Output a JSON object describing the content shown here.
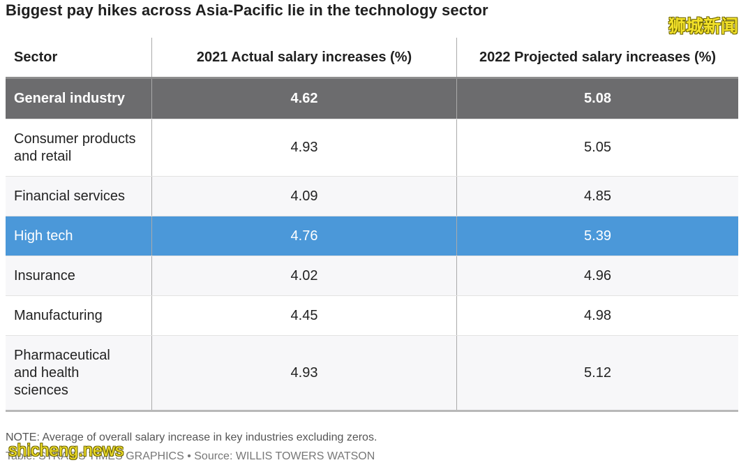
{
  "title": "Biggest pay hikes across Asia-Pacific lie in the technology sector",
  "watermark_top": "狮城新闻",
  "watermark_bottom": "shicheng.news",
  "colors": {
    "general_row_bg": "#6c6c6e",
    "highlight_row_bg": "#4b98d9",
    "watermark": "#f2e12a"
  },
  "chart_data": {
    "type": "table",
    "title": "Biggest pay hikes across Asia-Pacific lie in the technology sector",
    "columns": [
      "Sector",
      "2021 Actual salary increases (%)",
      "2022 Projected salary increases (%)"
    ],
    "rows": [
      {
        "sector": "General industry",
        "actual_2021": "4.62",
        "projected_2022": "5.08"
      },
      {
        "sector": "Consumer products and retail",
        "actual_2021": "4.93",
        "projected_2022": "5.05"
      },
      {
        "sector": "Financial services",
        "actual_2021": "4.09",
        "projected_2022": "4.85"
      },
      {
        "sector": "High tech",
        "actual_2021": "4.76",
        "projected_2022": "5.39"
      },
      {
        "sector": "Insurance",
        "actual_2021": "4.02",
        "projected_2022": "4.96"
      },
      {
        "sector": "Manufacturing",
        "actual_2021": "4.45",
        "projected_2022": "4.98"
      },
      {
        "sector": "Pharmaceutical and health sciences",
        "actual_2021": "4.93",
        "projected_2022": "5.12"
      }
    ]
  },
  "note": "NOTE: Average of overall salary increase in key industries excluding zeros.",
  "source": "Table: STRAITS TIMES GRAPHICS • Source: WILLIS TOWERS WATSON"
}
